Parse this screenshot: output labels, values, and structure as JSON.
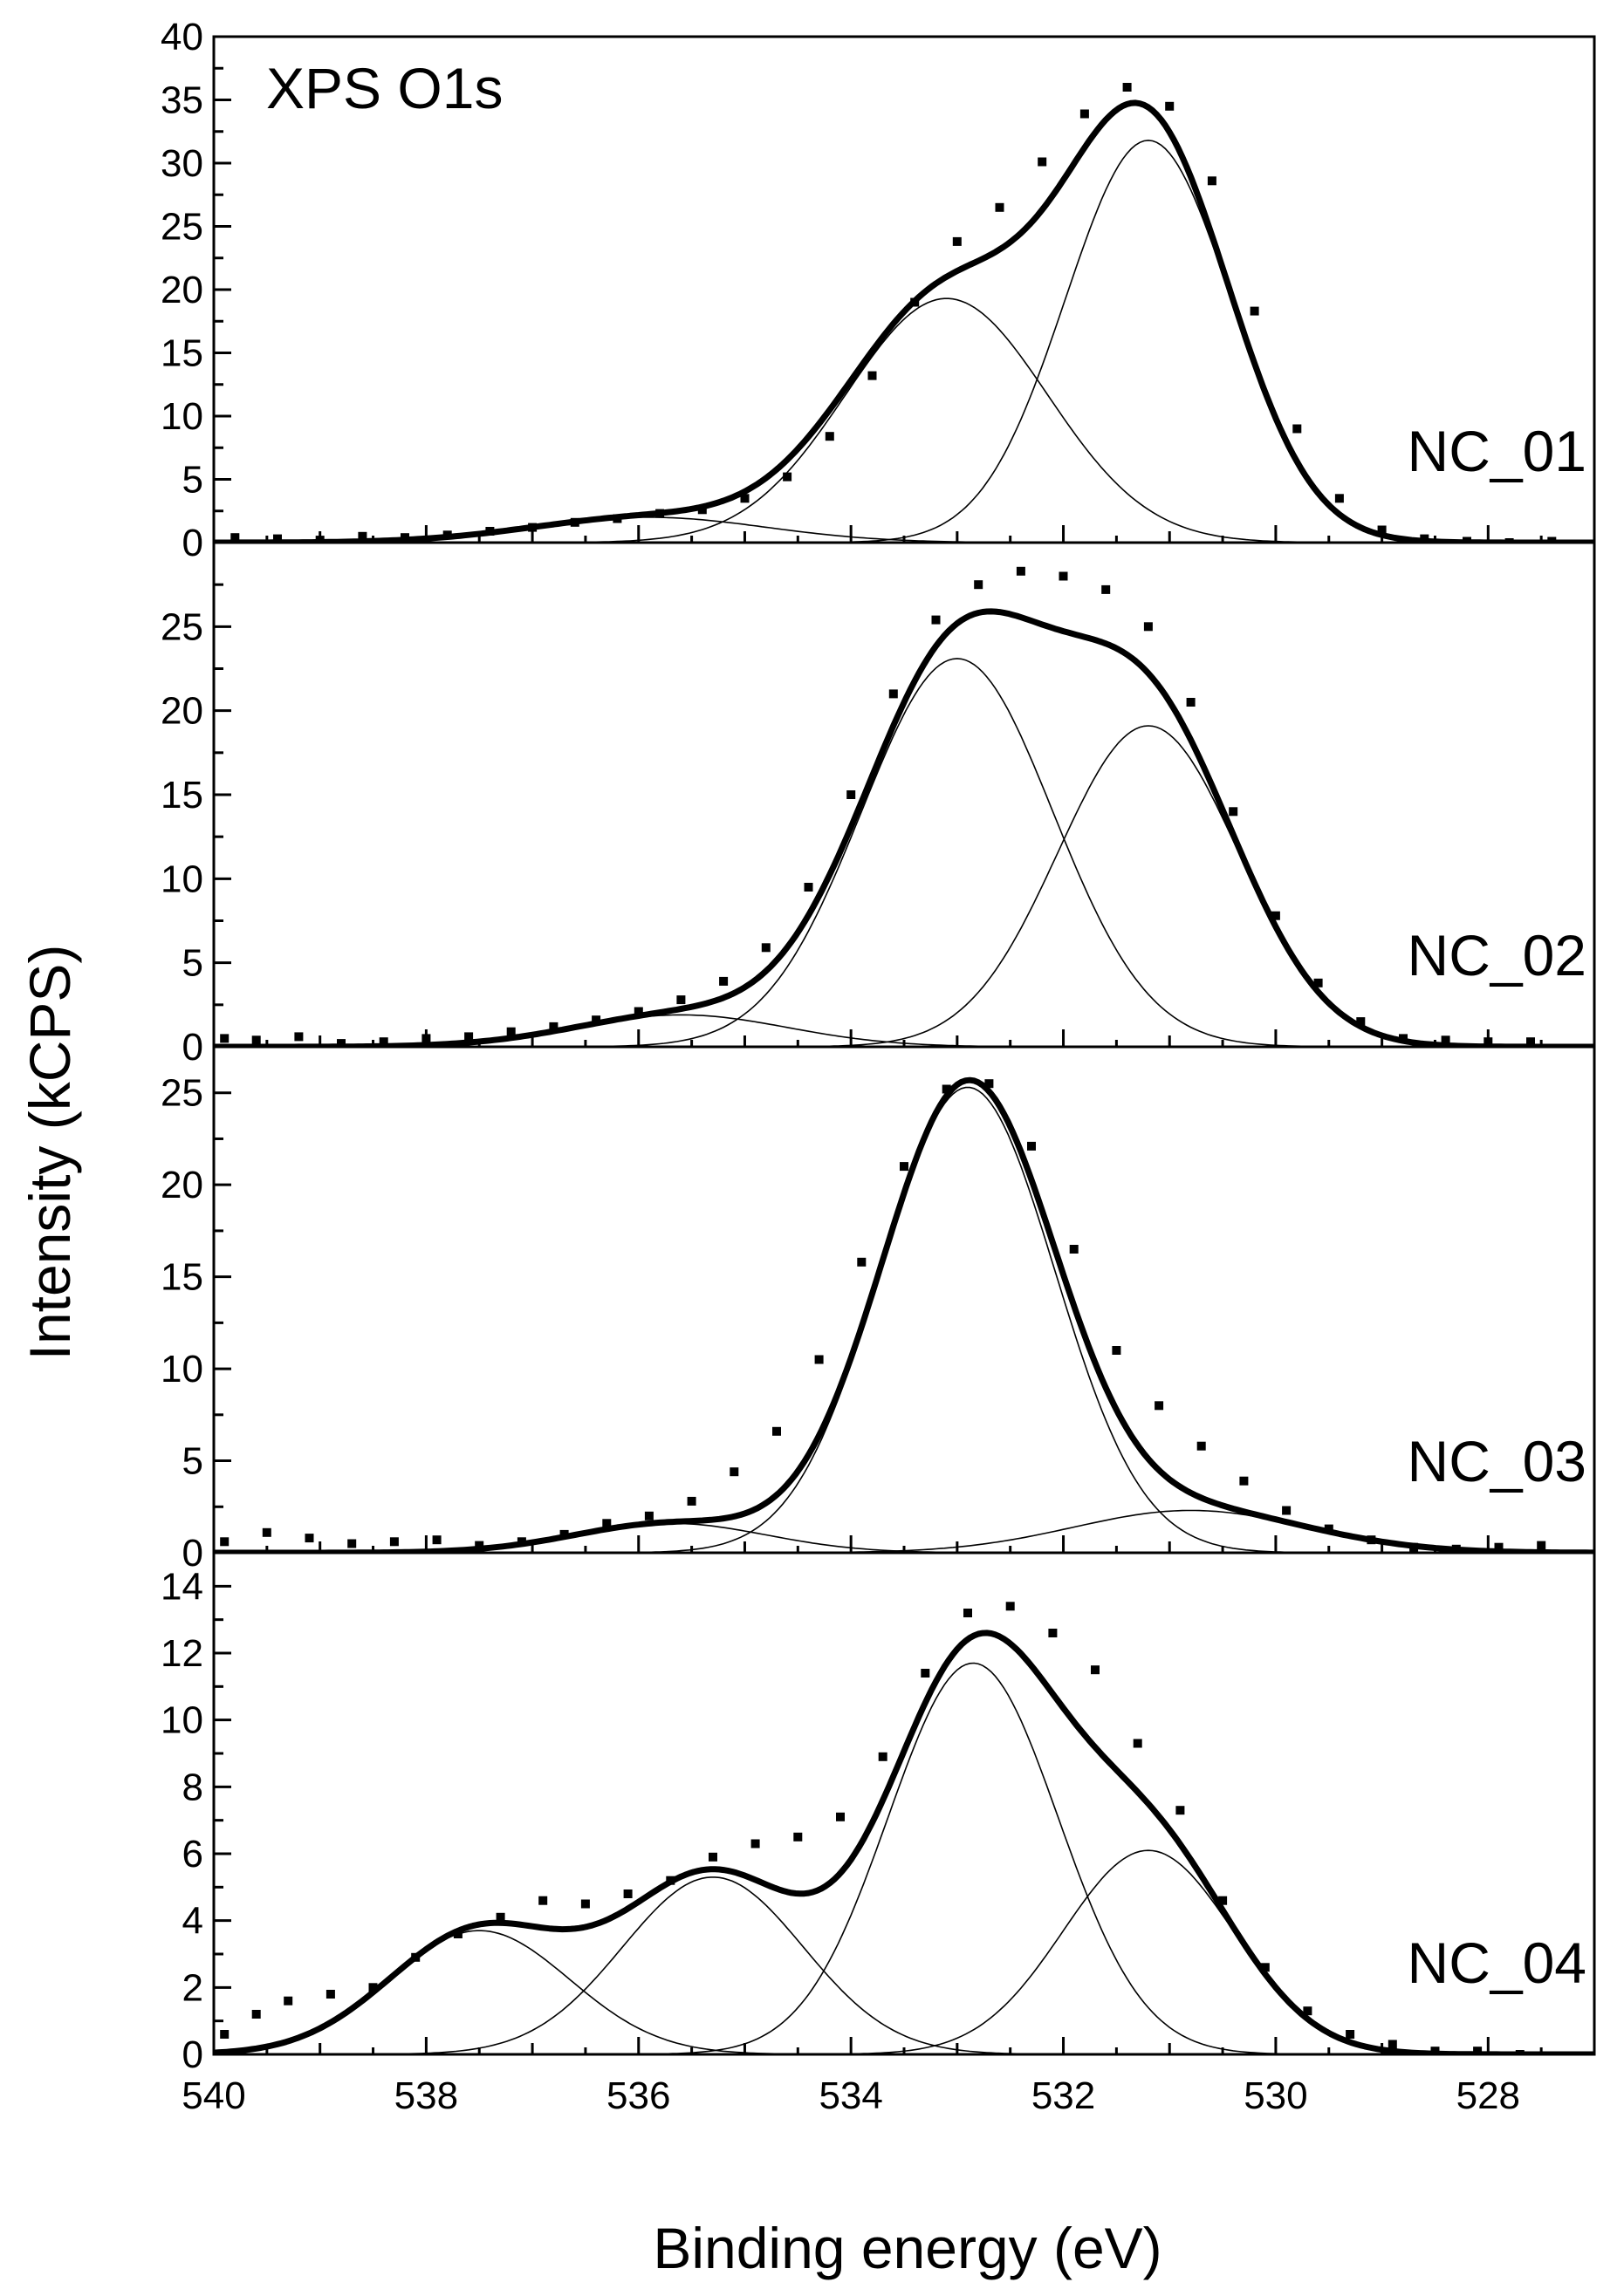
{
  "chart_data": {
    "type": "scatter",
    "title": "XPS O1s",
    "xlabel": "Binding energy (eV)",
    "ylabel": "Intensity (kCPS)",
    "x_reversed": true,
    "xlim": [
      527,
      540
    ],
    "x_ticks": [
      540,
      538,
      536,
      534,
      532,
      530,
      528
    ],
    "panels": [
      {
        "label": "NC_01",
        "ylim": [
          0,
          40
        ],
        "y_ticks": [
          0,
          5,
          10,
          15,
          20,
          25,
          30,
          35,
          40
        ],
        "components": [
          {
            "center": 535.9,
            "height": 2.0,
            "sigma": 1.1
          },
          {
            "center": 533.1,
            "height": 19.3,
            "sigma": 0.95
          },
          {
            "center": 531.2,
            "height": 31.8,
            "sigma": 0.78
          }
        ],
        "data_points": [
          [
            539.8,
            0.4
          ],
          [
            539.4,
            0.3
          ],
          [
            539.0,
            0.2
          ],
          [
            538.6,
            0.5
          ],
          [
            538.2,
            0.4
          ],
          [
            537.8,
            0.6
          ],
          [
            537.4,
            0.9
          ],
          [
            537.0,
            1.2
          ],
          [
            536.6,
            1.6
          ],
          [
            536.2,
            1.9
          ],
          [
            535.8,
            2.3
          ],
          [
            535.4,
            2.6
          ],
          [
            535.0,
            3.5
          ],
          [
            534.6,
            5.2
          ],
          [
            534.2,
            8.4
          ],
          [
            533.8,
            13.2
          ],
          [
            533.4,
            19.0
          ],
          [
            533.0,
            23.8
          ],
          [
            532.6,
            26.5
          ],
          [
            532.2,
            30.1
          ],
          [
            531.8,
            33.9
          ],
          [
            531.4,
            36.0
          ],
          [
            531.0,
            34.5
          ],
          [
            530.6,
            28.6
          ],
          [
            530.2,
            18.3
          ],
          [
            529.8,
            9.0
          ],
          [
            529.4,
            3.5
          ],
          [
            529.0,
            1.0
          ],
          [
            528.6,
            0.3
          ],
          [
            528.2,
            0.1
          ],
          [
            527.8,
            0.0
          ],
          [
            527.4,
            0.1
          ]
        ]
      },
      {
        "label": "NC_02",
        "ylim": [
          0,
          30
        ],
        "y_ticks": [
          0,
          5,
          10,
          15,
          20,
          25
        ],
        "components": [
          {
            "center": 535.6,
            "height": 1.9,
            "sigma": 1.0
          },
          {
            "center": 533.0,
            "height": 23.1,
            "sigma": 0.9
          },
          {
            "center": 531.2,
            "height": 19.1,
            "sigma": 0.85
          }
        ],
        "data_points": [
          [
            539.9,
            0.5
          ],
          [
            539.6,
            0.4
          ],
          [
            539.2,
            0.6
          ],
          [
            538.8,
            0.2
          ],
          [
            538.4,
            0.3
          ],
          [
            538.0,
            0.5
          ],
          [
            537.6,
            0.6
          ],
          [
            537.2,
            0.9
          ],
          [
            536.8,
            1.2
          ],
          [
            536.4,
            1.6
          ],
          [
            536.0,
            2.1
          ],
          [
            535.6,
            2.8
          ],
          [
            535.2,
            3.9
          ],
          [
            534.8,
            5.9
          ],
          [
            534.4,
            9.5
          ],
          [
            534.0,
            15.0
          ],
          [
            533.6,
            21.0
          ],
          [
            533.2,
            25.4
          ],
          [
            532.8,
            27.5
          ],
          [
            532.4,
            28.3
          ],
          [
            532.0,
            28.0
          ],
          [
            531.6,
            27.2
          ],
          [
            531.2,
            25.0
          ],
          [
            530.8,
            20.5
          ],
          [
            530.4,
            14.0
          ],
          [
            530.0,
            7.8
          ],
          [
            529.6,
            3.8
          ],
          [
            529.2,
            1.5
          ],
          [
            528.8,
            0.5
          ],
          [
            528.4,
            0.4
          ],
          [
            528.0,
            0.3
          ],
          [
            527.6,
            0.3
          ]
        ]
      },
      {
        "label": "NC_03",
        "ylim": [
          0,
          27.5
        ],
        "y_ticks": [
          0,
          5,
          10,
          15,
          20,
          25
        ],
        "components": [
          {
            "center": 535.7,
            "height": 1.6,
            "sigma": 0.9
          },
          {
            "center": 532.9,
            "height": 25.3,
            "sigma": 0.82
          },
          {
            "center": 530.8,
            "height": 2.3,
            "sigma": 1.1
          }
        ],
        "data_points": [
          [
            539.9,
            0.6
          ],
          [
            539.5,
            1.1
          ],
          [
            539.1,
            0.8
          ],
          [
            538.7,
            0.5
          ],
          [
            538.3,
            0.6
          ],
          [
            537.9,
            0.7
          ],
          [
            537.5,
            0.4
          ],
          [
            537.1,
            0.6
          ],
          [
            536.7,
            1.0
          ],
          [
            536.3,
            1.6
          ],
          [
            535.9,
            2.0
          ],
          [
            535.5,
            2.8
          ],
          [
            535.1,
            4.4
          ],
          [
            534.7,
            6.6
          ],
          [
            534.3,
            10.5
          ],
          [
            533.9,
            15.8
          ],
          [
            533.5,
            21.0
          ],
          [
            533.1,
            25.2
          ],
          [
            532.7,
            25.5
          ],
          [
            532.3,
            22.1
          ],
          [
            531.9,
            16.5
          ],
          [
            531.5,
            11.0
          ],
          [
            531.1,
            8.0
          ],
          [
            530.7,
            5.8
          ],
          [
            530.3,
            3.9
          ],
          [
            529.9,
            2.3
          ],
          [
            529.5,
            1.3
          ],
          [
            529.1,
            0.7
          ],
          [
            528.7,
            0.3
          ],
          [
            528.3,
            0.2
          ],
          [
            527.9,
            0.3
          ],
          [
            527.5,
            0.4
          ]
        ]
      },
      {
        "label": "NC_04",
        "ylim": [
          0,
          15
        ],
        "y_ticks": [
          0,
          2,
          4,
          6,
          8,
          10,
          12,
          14
        ],
        "components": [
          {
            "center": 537.5,
            "height": 3.7,
            "sigma": 0.85
          },
          {
            "center": 535.3,
            "height": 5.3,
            "sigma": 0.85
          },
          {
            "center": 532.85,
            "height": 11.7,
            "sigma": 0.8
          },
          {
            "center": 531.2,
            "height": 6.1,
            "sigma": 0.8
          }
        ],
        "data_points": [
          [
            539.9,
            0.6
          ],
          [
            539.6,
            1.2
          ],
          [
            539.3,
            1.6
          ],
          [
            538.9,
            1.8
          ],
          [
            538.5,
            2.0
          ],
          [
            538.1,
            2.9
          ],
          [
            537.7,
            3.6
          ],
          [
            537.3,
            4.1
          ],
          [
            536.9,
            4.6
          ],
          [
            536.5,
            4.5
          ],
          [
            536.1,
            4.8
          ],
          [
            535.7,
            5.2
          ],
          [
            535.3,
            5.9
          ],
          [
            534.9,
            6.3
          ],
          [
            534.5,
            6.5
          ],
          [
            534.1,
            7.1
          ],
          [
            533.7,
            8.9
          ],
          [
            533.3,
            11.4
          ],
          [
            532.9,
            13.2
          ],
          [
            532.5,
            13.4
          ],
          [
            532.1,
            12.6
          ],
          [
            531.7,
            11.5
          ],
          [
            531.3,
            9.3
          ],
          [
            530.9,
            7.3
          ],
          [
            530.5,
            4.6
          ],
          [
            530.1,
            2.6
          ],
          [
            529.7,
            1.3
          ],
          [
            529.3,
            0.6
          ],
          [
            528.9,
            0.3
          ],
          [
            528.5,
            0.1
          ],
          [
            528.1,
            0.1
          ],
          [
            527.7,
            0.0
          ]
        ]
      }
    ]
  }
}
